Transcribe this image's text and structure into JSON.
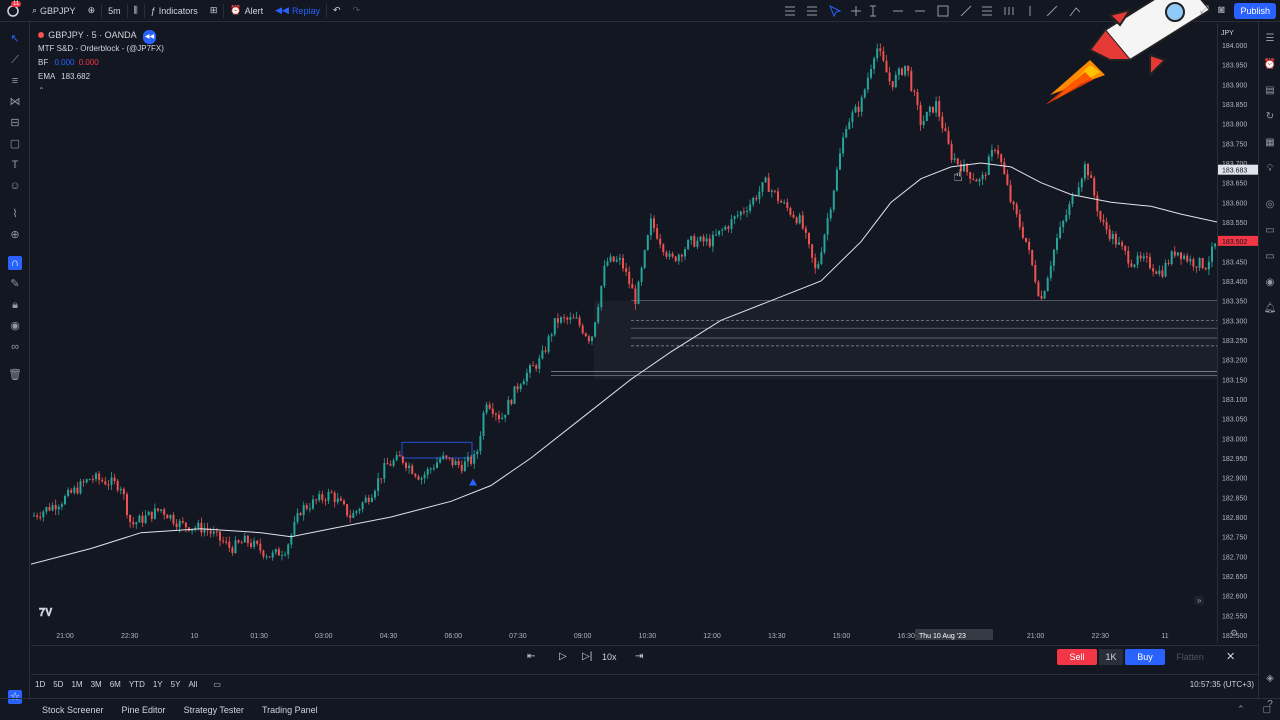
{
  "topbar": {
    "symbol": "GBPJPY",
    "interval": "5m",
    "indicators_label": "Indicators",
    "alert_label": "Alert",
    "replay_label": "Replay",
    "publish_label": "Publish",
    "notification_count": "11"
  },
  "legend": {
    "title": "GBPJPY · 5 · OANDA",
    "indicator1": "MTF S&D - Orderblock - (@JP7FX)",
    "bf_label": "BF",
    "bf_val1": "0.000",
    "bf_val2": "0.000",
    "ema_label": "EMA",
    "ema_value": "183.682"
  },
  "currency": "JPY",
  "price_ticks": [
    "184.000",
    "183.950",
    "183.900",
    "183.850",
    "183.800",
    "183.750",
    "183.700",
    "183.650",
    "183.600",
    "183.550",
    "183.500",
    "183.450",
    "183.400",
    "183.350",
    "183.300",
    "183.250",
    "183.200",
    "183.150",
    "183.100",
    "183.050",
    "183.000",
    "182.950",
    "182.900",
    "182.850",
    "182.800",
    "182.750",
    "182.700",
    "182.650",
    "182.600",
    "182.550",
    "182.500"
  ],
  "current_ema_label": "183.683",
  "current_price_label": "183.502",
  "time_ticks": [
    "21:00",
    "22:30",
    "10",
    "01:30",
    "03:00",
    "04:30",
    "06:00",
    "07:30",
    "09:00",
    "10:30",
    "12:00",
    "13:30",
    "15:00",
    "16:30",
    "18:50",
    "21:00",
    "22:30",
    "11"
  ],
  "crosshair_time": "Thu 10 Aug '23",
  "replay": {
    "speed": "10x"
  },
  "trade": {
    "sell_label": "Sell",
    "qty_label": "1K",
    "buy_label": "Buy",
    "flatten_label": "Flatten"
  },
  "ranges": [
    "1D",
    "5D",
    "1M",
    "3M",
    "6M",
    "YTD",
    "1Y",
    "5Y",
    "All"
  ],
  "clock": "10:57:35 (UTC+3)",
  "bottom_tabs": [
    "Stock Screener",
    "Pine Editor",
    "Strategy Tester",
    "Trading Panel"
  ],
  "colors": {
    "up": "#26a69a",
    "down": "#ef5350",
    "ema": "#e0e3eb",
    "accent": "#2962ff"
  },
  "chart_data": {
    "type": "candlestick",
    "ylim": [
      182.5,
      184.0
    ],
    "ema_label": "EMA",
    "zones": [
      {
        "from": 183.35,
        "to": 183.15,
        "style": "grey-box"
      }
    ]
  }
}
